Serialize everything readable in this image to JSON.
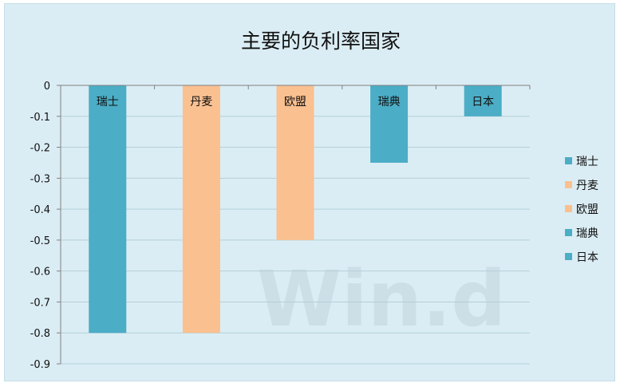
{
  "chart_data": {
    "type": "bar",
    "title": "主要的负利率国家",
    "categories": [
      "瑞士",
      "丹麦",
      "欧盟",
      "瑞典",
      "日本"
    ],
    "values": [
      -0.8,
      -0.8,
      -0.5,
      -0.25,
      -0.1
    ],
    "colors": [
      "#4badc6",
      "#fac090",
      "#fac090",
      "#4badc6",
      "#4badc6"
    ],
    "ylim": [
      -0.9,
      0
    ],
    "yticks": [
      0,
      -0.1,
      -0.2,
      -0.3,
      -0.4,
      -0.5,
      -0.6,
      -0.7,
      -0.8,
      -0.9
    ],
    "ytick_labels": [
      "0",
      "-0.1",
      "-0.2",
      "-0.3",
      "-0.4",
      "-0.5",
      "-0.6",
      "-0.7",
      "-0.8",
      "-0.9"
    ],
    "grid": true,
    "legend": "right",
    "xlabel": "",
    "ylabel": ""
  },
  "watermark": "Win.d"
}
